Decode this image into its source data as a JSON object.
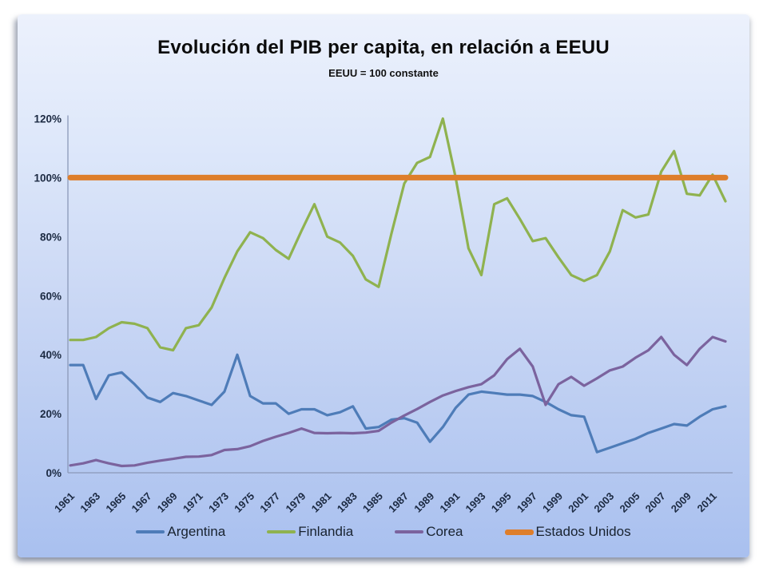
{
  "chart_data": {
    "type": "line",
    "title": "Evolución del PIB per capita, en relación a EEUU",
    "subtitle": "EEUU = 100 constante",
    "x": [
      1961,
      1962,
      1963,
      1964,
      1965,
      1966,
      1967,
      1968,
      1969,
      1970,
      1971,
      1972,
      1973,
      1974,
      1975,
      1976,
      1977,
      1978,
      1979,
      1980,
      1981,
      1982,
      1983,
      1984,
      1985,
      1986,
      1987,
      1988,
      1989,
      1990,
      1991,
      1992,
      1993,
      1994,
      1995,
      1996,
      1997,
      1998,
      1999,
      2000,
      2001,
      2002,
      2003,
      2004,
      2005,
      2006,
      2007,
      2008,
      2009,
      2010,
      2011,
      2012
    ],
    "x_tick_labels": [
      "1961",
      "1963",
      "1965",
      "1967",
      "1969",
      "1971",
      "1973",
      "1975",
      "1977",
      "1979",
      "1981",
      "1983",
      "1985",
      "1987",
      "1989",
      "1991",
      "1993",
      "1995",
      "1997",
      "1999",
      "2001",
      "2003",
      "2005",
      "2007",
      "2009",
      "2011"
    ],
    "y_tick_labels": [
      "0%",
      "20%",
      "40%",
      "60%",
      "80%",
      "100%",
      "120%"
    ],
    "ylim": [
      0,
      120
    ],
    "xlim": [
      1961,
      2012
    ],
    "grid": false,
    "legend_position": "bottom",
    "units": "percent of USA GDP per capita",
    "series": [
      {
        "name": "Argentina",
        "color": "#4e7cb8",
        "width": 3.2,
        "values": [
          36.5,
          36.5,
          25,
          33,
          34,
          30,
          25.5,
          24,
          27,
          26,
          24.5,
          23,
          27.5,
          40,
          26,
          23.5,
          23.5,
          20,
          21.5,
          21.5,
          19.5,
          20.5,
          22.5,
          15,
          15.5,
          18,
          18.5,
          17,
          10.5,
          15.5,
          22,
          26.5,
          27.5,
          27,
          26.5,
          26.5,
          26,
          24,
          21.5,
          19.5,
          19,
          7,
          8.5,
          10,
          11.5,
          13.5,
          15,
          16.5,
          16,
          19,
          21.5,
          22.5
        ]
      },
      {
        "name": "Finlandia",
        "color": "#8fb24f",
        "width": 3.2,
        "values": [
          45,
          45,
          46,
          49,
          51,
          50.5,
          49,
          42.5,
          41.5,
          49,
          50,
          56,
          66,
          75,
          81.5,
          79.5,
          75.5,
          72.5,
          82,
          91,
          80,
          78,
          73.5,
          65.5,
          63,
          81,
          98,
          105,
          107,
          120,
          100,
          76,
          67,
          91,
          93,
          86,
          78.5,
          79.5,
          73,
          67,
          65,
          67,
          75,
          89,
          86.5,
          87.5,
          102,
          109,
          94.5,
          94,
          101,
          92
        ]
      },
      {
        "name": "Corea",
        "color": "#7b639e",
        "width": 3.2,
        "values": [
          2.5,
          3.2,
          4.3,
          3.2,
          2.3,
          2.5,
          3.4,
          4.1,
          4.7,
          5.4,
          5.5,
          6,
          7.7,
          8,
          9,
          10.8,
          12.2,
          13.5,
          15,
          13.5,
          13.4,
          13.5,
          13.4,
          13.6,
          14.2,
          17,
          19.4,
          21.6,
          24,
          26.2,
          27.7,
          29,
          30,
          33,
          38.5,
          42,
          36,
          23,
          30,
          32.5,
          29.5,
          32,
          34.7,
          36,
          39,
          41.5,
          46,
          40,
          36.5,
          42,
          46,
          44.5
        ]
      },
      {
        "name": "Estados Unidos",
        "color": "#de7e2b",
        "width": 7,
        "constant": 100
      }
    ],
    "axis_color": "#8b99b8"
  }
}
